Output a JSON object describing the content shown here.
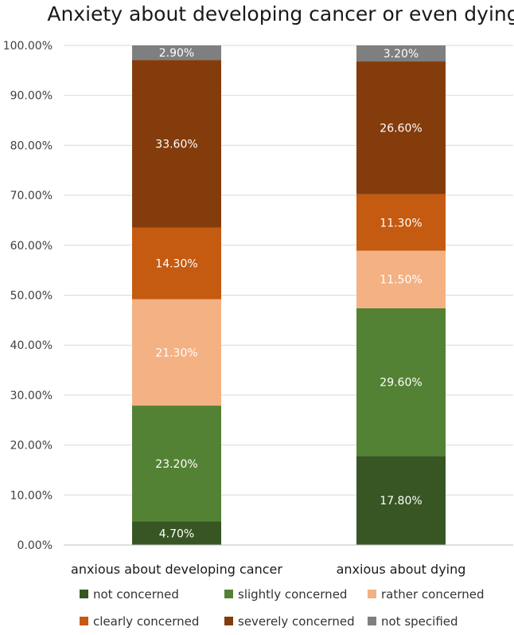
{
  "chart_data": {
    "type": "bar",
    "stacked": true,
    "title": "Anxiety about developing cancer or even dying",
    "categories": [
      "anxious about developing cancer",
      "anxious about dying"
    ],
    "ylim": [
      0,
      100
    ],
    "yticks": [
      0,
      10,
      20,
      30,
      40,
      50,
      60,
      70,
      80,
      90,
      100
    ],
    "ytick_labels": [
      "0.00%",
      "10.00%",
      "20.00%",
      "30.00%",
      "40.00%",
      "50.00%",
      "60.00%",
      "70.00%",
      "80.00%",
      "90.00%",
      "100.00%"
    ],
    "grid": true,
    "legend_position": "bottom",
    "series": [
      {
        "name": "not concerned",
        "color": "#375623",
        "values": [
          4.7,
          17.8
        ],
        "labels": [
          "4.70%",
          "17.80%"
        ]
      },
      {
        "name": "slightly concerned",
        "color": "#548235",
        "values": [
          23.2,
          29.6
        ],
        "labels": [
          "23.20%",
          "29.60%"
        ]
      },
      {
        "name": "rather concerned",
        "color": "#F4B183",
        "values": [
          21.3,
          11.5
        ],
        "labels": [
          "21.30%",
          "11.50%"
        ]
      },
      {
        "name": "clearly concerned",
        "color": "#C55A11",
        "values": [
          14.3,
          11.3
        ],
        "labels": [
          "14.30%",
          "11.30%"
        ]
      },
      {
        "name": "severely concerned",
        "color": "#843C0C",
        "values": [
          33.6,
          26.6
        ],
        "labels": [
          "33.60%",
          "26.60%"
        ]
      },
      {
        "name": "not specified",
        "color": "#7F7F7F",
        "values": [
          2.9,
          3.2
        ],
        "labels": [
          "2.90%",
          "3.20%"
        ]
      }
    ]
  }
}
